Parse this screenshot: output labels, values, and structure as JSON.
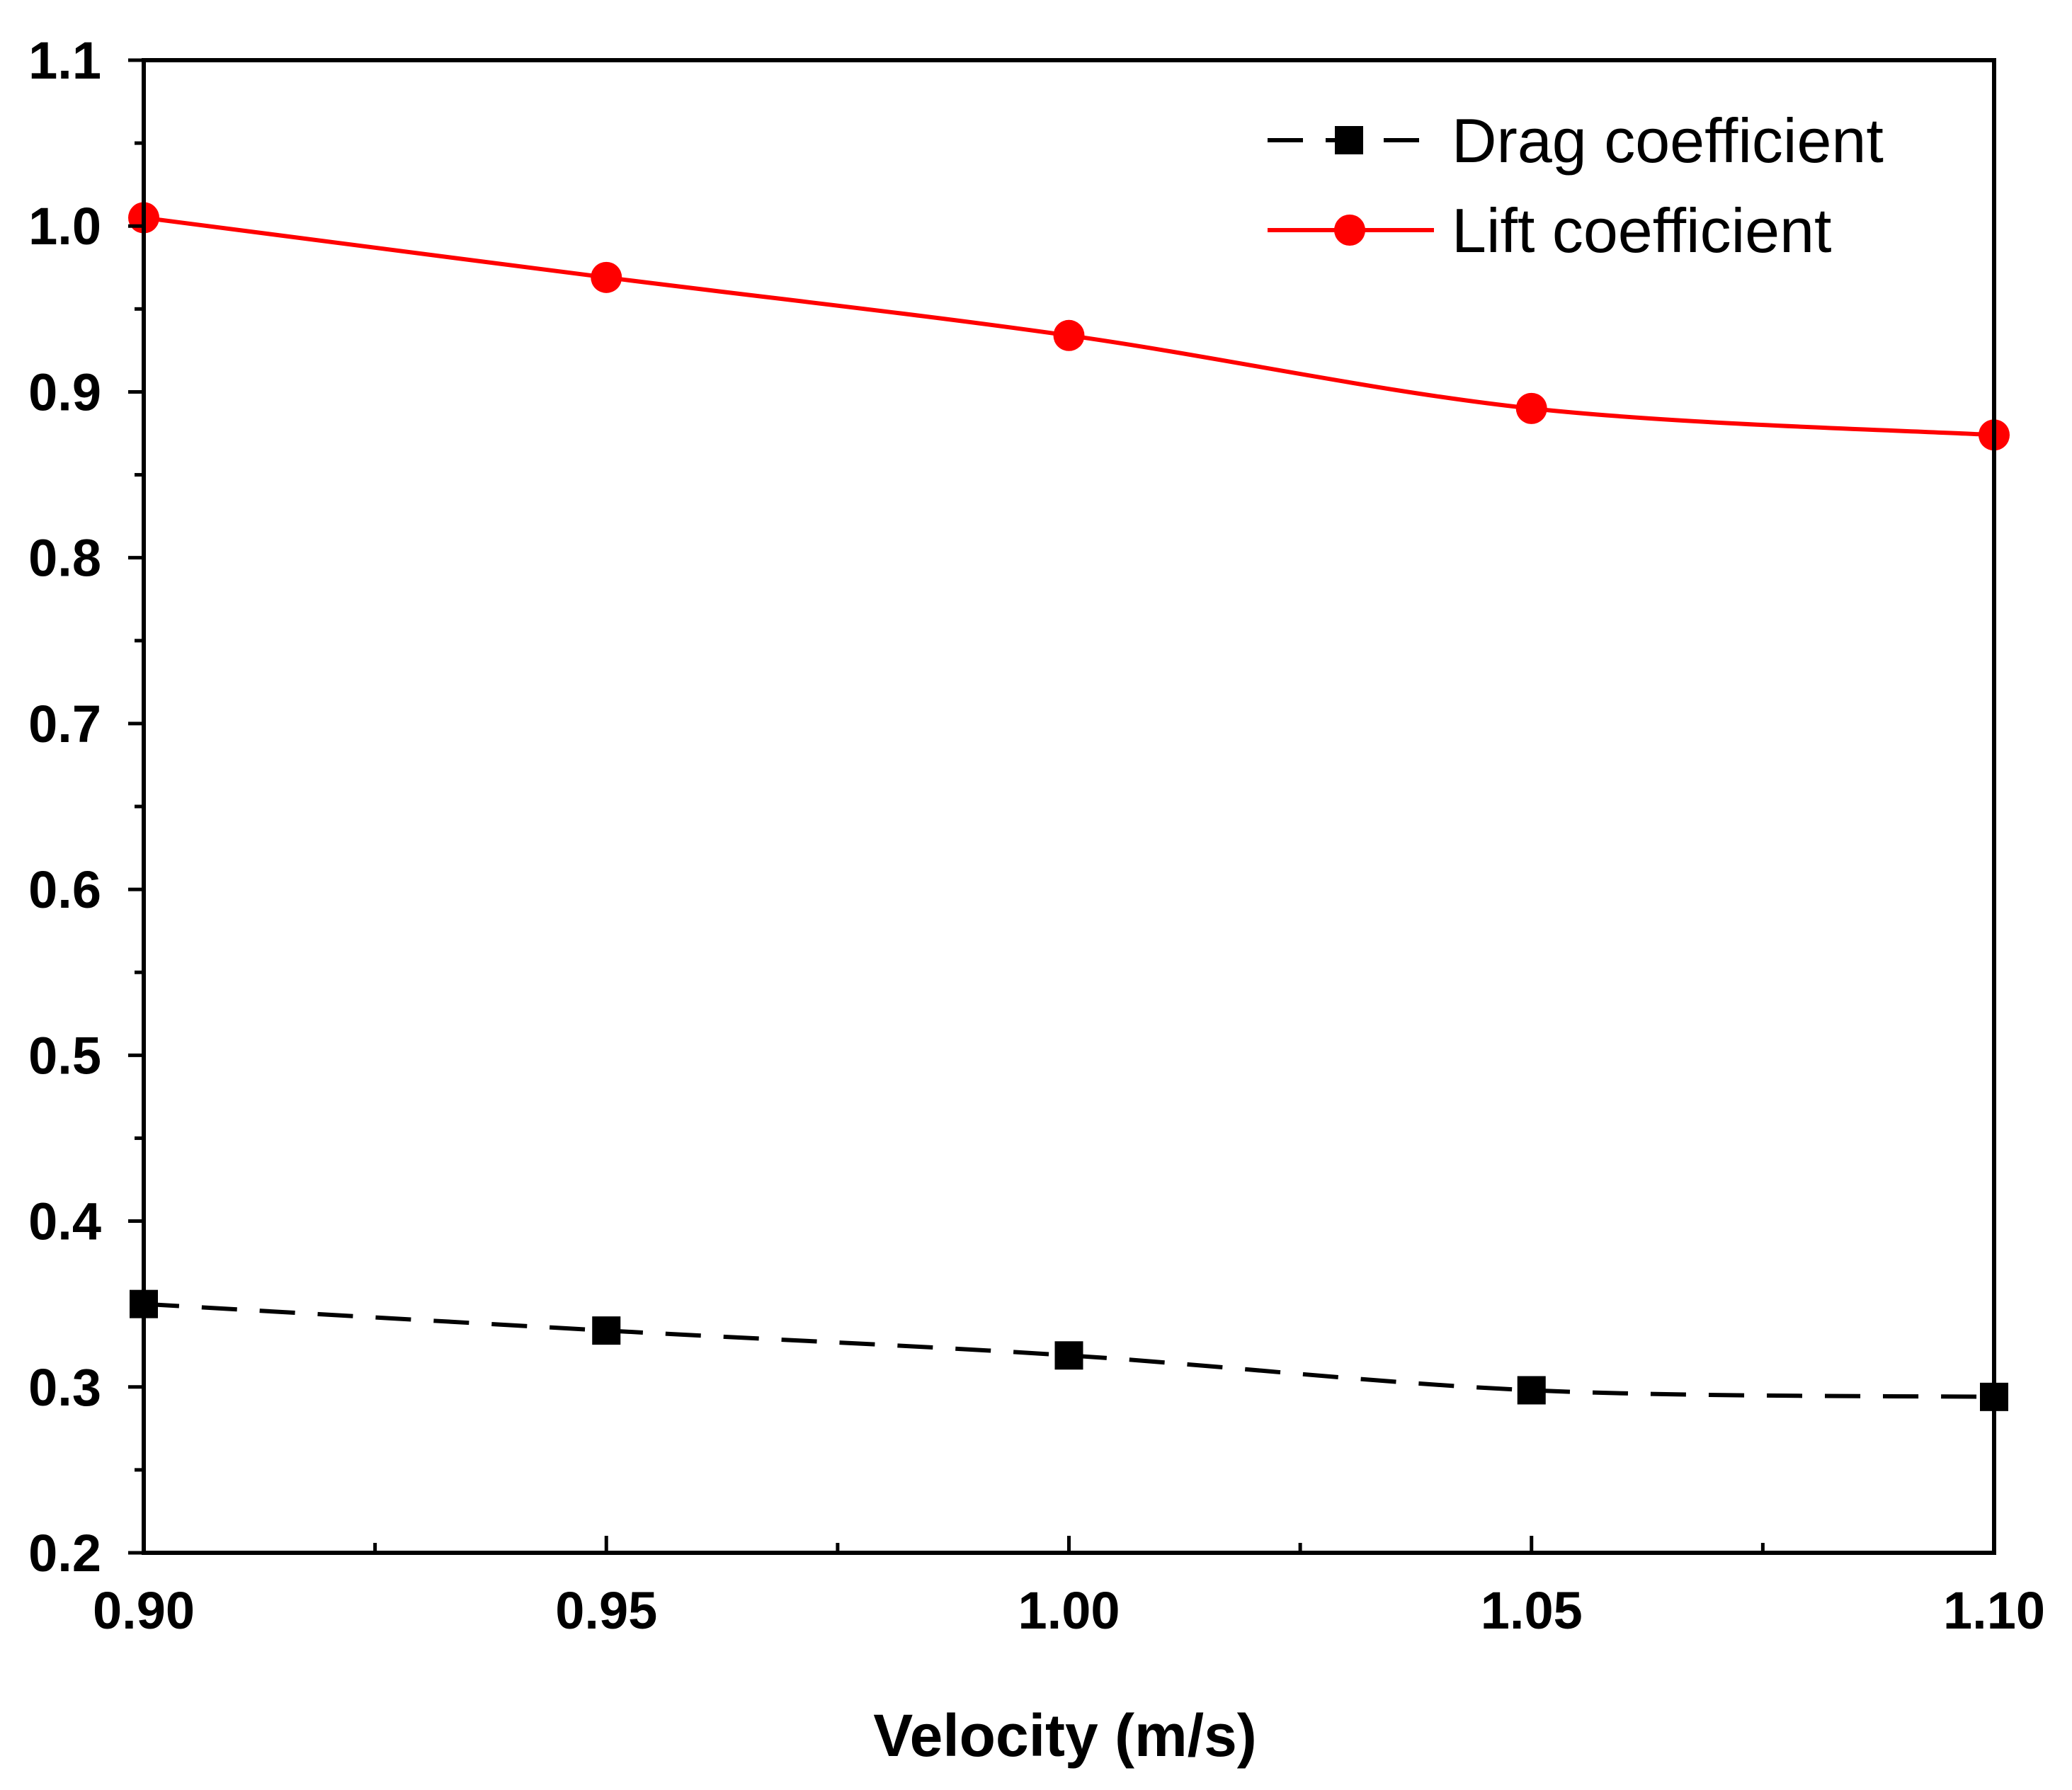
{
  "chart_data": {
    "type": "line",
    "title": "",
    "xlabel": "Velocity (m/s)",
    "ylabel": "",
    "xlim": [
      0.9,
      1.1
    ],
    "ylim": [
      0.2,
      1.1
    ],
    "x": [
      0.9,
      0.95,
      1.0,
      1.05,
      1.1
    ],
    "xticks": [
      "0.90",
      "0.95",
      "1.00",
      "1.05",
      "1.10"
    ],
    "yticks": [
      "0.2",
      "0.3",
      "0.4",
      "0.5",
      "0.6",
      "0.7",
      "0.8",
      "0.9",
      "1.0",
      "1.1"
    ],
    "grid": false,
    "legend_position": "top-right",
    "series": [
      {
        "name": "Drag coefficient",
        "values": [
          0.35,
          0.334,
          0.319,
          0.298,
          0.294
        ],
        "color": "#000000",
        "line_style": "dashed",
        "marker": "square"
      },
      {
        "name": "Lift coefficient",
        "values": [
          1.005,
          0.969,
          0.934,
          0.89,
          0.874
        ],
        "color": "#ff0000",
        "line_style": "solid",
        "marker": "circle"
      }
    ]
  }
}
